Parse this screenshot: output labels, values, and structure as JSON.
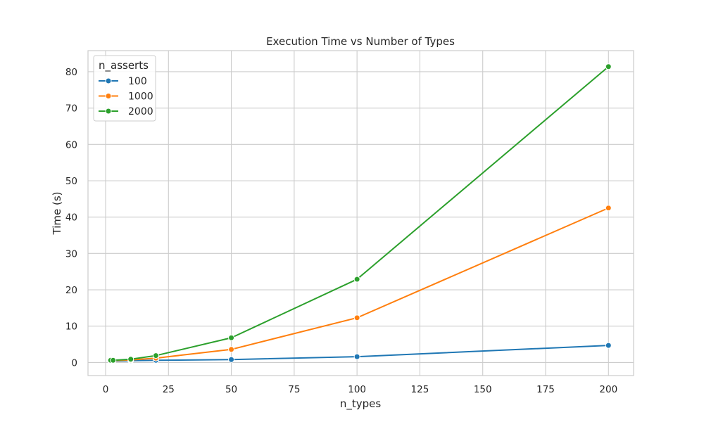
{
  "chart_data": {
    "type": "line",
    "title": "Execution Time vs Number of Types",
    "xlabel": "n_types",
    "ylabel": "Time (s)",
    "xlim": [
      -7,
      210
    ],
    "ylim": [
      -3.6,
      85.8
    ],
    "xticks": [
      0,
      25,
      50,
      75,
      100,
      125,
      150,
      175,
      200
    ],
    "yticks": [
      0,
      10,
      20,
      30,
      40,
      50,
      60,
      70,
      80
    ],
    "grid": true,
    "legend": {
      "title": "n_asserts",
      "placement": "top-left"
    },
    "series": [
      {
        "name": "100",
        "color": "#1f77b4",
        "x": [
          2,
          3,
          10,
          20,
          50,
          100,
          200
        ],
        "y": [
          0.4,
          0.4,
          0.5,
          0.6,
          0.8,
          1.6,
          4.7
        ]
      },
      {
        "name": "1000",
        "color": "#ff7f0e",
        "x": [
          2,
          3,
          10,
          20,
          50,
          100,
          200
        ],
        "y": [
          0.5,
          0.5,
          0.7,
          1.2,
          3.6,
          12.3,
          42.5
        ]
      },
      {
        "name": "2000",
        "color": "#2ca02c",
        "x": [
          2,
          3,
          10,
          20,
          50,
          100,
          200
        ],
        "y": [
          0.6,
          0.6,
          0.9,
          1.9,
          6.8,
          22.9,
          81.4
        ]
      }
    ]
  }
}
